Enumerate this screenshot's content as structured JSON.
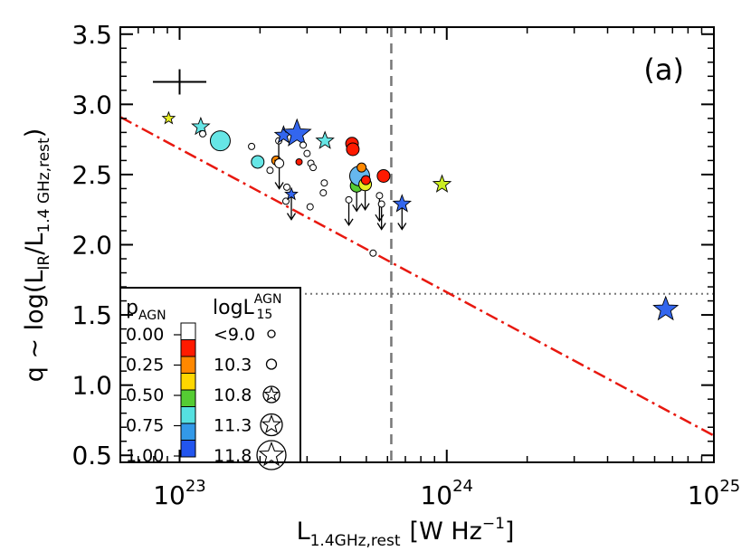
{
  "chart_data": {
    "type": "scatter",
    "panel_label": "(a)",
    "xlabel": {
      "main": "L",
      "sub": "1.4GHz,rest",
      "units_pre": "[W Hz",
      "units_sup": "−1",
      "units_post": "]"
    },
    "ylabel": {
      "pre": "q ~ log(L",
      "sub1": "IR",
      "mid": "/L",
      "sub2": "1.4 GHz,rest",
      "post": ")"
    },
    "x_scale": "log",
    "xlim": [
      6e+22,
      1e+25
    ],
    "ylim": [
      0.45,
      3.55
    ],
    "xticks": [
      {
        "value": 1e+23,
        "base": "10",
        "exp": "23"
      },
      {
        "value": 1e+24,
        "base": "10",
        "exp": "24"
      },
      {
        "value": 1e+25,
        "base": "10",
        "exp": "25"
      }
    ],
    "yticks": [
      "0.5",
      "1.0",
      "1.5",
      "2.0",
      "2.5",
      "3.0",
      "3.5"
    ],
    "reference_lines": {
      "vertical_dashed_x": 6.2e+23,
      "horizontal_dotted_y": 1.65,
      "red_dashdot": {
        "x": [
          6e+22,
          1e+25
        ],
        "y": [
          2.91,
          0.64
        ]
      }
    },
    "error_cross": {
      "x": 1e+23,
      "y": 3.16,
      "dlogx": 0.1,
      "dy": 0.09
    },
    "legend": {
      "p_title_main": "p",
      "p_title_sub": "AGN",
      "l_title_main": "logL",
      "l_title_sup": "AGN",
      "l_title_sub": "15",
      "p_items": [
        {
          "label": "0.00",
          "color": "#ffffff"
        },
        {
          "label": "0.25",
          "color": "#ff1a00"
        },
        {
          "label": "0.25",
          "color": "#ff8800"
        },
        {
          "label": "0.50",
          "color": "#ffd700"
        },
        {
          "label": "0.50",
          "color": "#55cc33"
        },
        {
          "label": "0.75",
          "color": "#55e0e0"
        },
        {
          "label": "0.75",
          "color": "#3399e8"
        },
        {
          "label": "1.00",
          "color": "#2255ee"
        }
      ],
      "p_tick_labels": [
        "0.00",
        "0.25",
        "0.50",
        "0.75",
        "1.00"
      ],
      "l_items": [
        {
          "label": "<9.0",
          "marker": "circle",
          "size": 1
        },
        {
          "label": "10.3",
          "marker": "circle",
          "size": 2
        },
        {
          "label": "10.8",
          "marker": "star-in-circle",
          "size": 3
        },
        {
          "label": "11.3",
          "marker": "star-in-circle",
          "size": 4
        },
        {
          "label": "11.8",
          "marker": "star-in-circle",
          "size": 5
        }
      ]
    },
    "points": [
      {
        "x": 9.1e+22,
        "y": 2.9,
        "marker": "star",
        "size": 2,
        "color": "#e8ee22",
        "upper_limit": false
      },
      {
        "x": 1.2e+23,
        "y": 2.84,
        "marker": "star",
        "size": 3,
        "color": "#66e6e6",
        "upper_limit": false
      },
      {
        "x": 1.22e+23,
        "y": 2.79,
        "marker": "circle",
        "size": 1,
        "color": "#ffffff",
        "upper_limit": false
      },
      {
        "x": 1.42e+23,
        "y": 2.74,
        "marker": "circle",
        "size": 4,
        "color": "#66e6e6",
        "upper_limit": false
      },
      {
        "x": 1.86e+23,
        "y": 2.7,
        "marker": "circle",
        "size": 1,
        "color": "#ffffff",
        "upper_limit": false
      },
      {
        "x": 1.96e+23,
        "y": 2.59,
        "marker": "circle",
        "size": 3,
        "color": "#66e6e6",
        "upper_limit": false
      },
      {
        "x": 2.18e+23,
        "y": 2.53,
        "marker": "circle",
        "size": 1,
        "color": "#ffffff",
        "upper_limit": false
      },
      {
        "x": 2.3e+23,
        "y": 2.6,
        "marker": "circle",
        "size": 2,
        "color": "#ff8800",
        "upper_limit": false
      },
      {
        "x": 2.35e+23,
        "y": 2.74,
        "marker": "circle",
        "size": 1,
        "color": "#ffffff",
        "upper_limit": true
      },
      {
        "x": 2.36e+23,
        "y": 2.58,
        "marker": "circle",
        "size": 2,
        "color": "#ffffff",
        "upper_limit": true
      },
      {
        "x": 2.45e+23,
        "y": 2.78,
        "marker": "star",
        "size": 3,
        "color": "#3366ee",
        "upper_limit": false
      },
      {
        "x": 2.5e+23,
        "y": 2.31,
        "marker": "circle",
        "size": 1,
        "color": "#ffffff",
        "upper_limit": false
      },
      {
        "x": 2.52e+23,
        "y": 2.41,
        "marker": "circle",
        "size": 1,
        "color": "#ffffff",
        "upper_limit": false
      },
      {
        "x": 2.62e+23,
        "y": 2.36,
        "marker": "star",
        "size": 2,
        "color": "#3366ee",
        "upper_limit": true
      },
      {
        "x": 2.75e+23,
        "y": 2.79,
        "marker": "star",
        "size": 5,
        "color": "#3366ee",
        "upper_limit": false
      },
      {
        "x": 2.8e+23,
        "y": 2.59,
        "marker": "circle",
        "size": 1,
        "color": "#ff1a00",
        "upper_limit": false
      },
      {
        "x": 2.9e+23,
        "y": 2.71,
        "marker": "circle",
        "size": 1,
        "color": "#ffffff",
        "upper_limit": false
      },
      {
        "x": 3e+23,
        "y": 2.65,
        "marker": "circle",
        "size": 1,
        "color": "#ffffff",
        "upper_limit": false
      },
      {
        "x": 3.1e+23,
        "y": 2.58,
        "marker": "circle",
        "size": 1,
        "color": "#ffffff",
        "upper_limit": false
      },
      {
        "x": 3.16e+23,
        "y": 2.55,
        "marker": "circle",
        "size": 1,
        "color": "#ffffff",
        "upper_limit": false
      },
      {
        "x": 3.08e+23,
        "y": 2.27,
        "marker": "circle",
        "size": 1,
        "color": "#ffffff",
        "upper_limit": false
      },
      {
        "x": 3.5e+23,
        "y": 2.74,
        "marker": "star",
        "size": 3,
        "color": "#66e6e6",
        "upper_limit": false
      },
      {
        "x": 3.45e+23,
        "y": 2.37,
        "marker": "circle",
        "size": 1,
        "color": "#ffffff",
        "upper_limit": false
      },
      {
        "x": 3.48e+23,
        "y": 2.44,
        "marker": "circle",
        "size": 1,
        "color": "#ffffff",
        "upper_limit": false
      },
      {
        "x": 4.3e+23,
        "y": 2.32,
        "marker": "circle",
        "size": 1,
        "color": "#ffffff",
        "upper_limit": true
      },
      {
        "x": 4.42e+23,
        "y": 2.72,
        "marker": "circle",
        "size": 3,
        "color": "#ff1a00",
        "upper_limit": false
      },
      {
        "x": 4.45e+23,
        "y": 2.68,
        "marker": "circle",
        "size": 3,
        "color": "#ff1a00",
        "upper_limit": false
      },
      {
        "x": 4.6e+23,
        "y": 2.42,
        "marker": "circle",
        "size": 3,
        "color": "#55cc33",
        "upper_limit": true
      },
      {
        "x": 4.72e+23,
        "y": 2.49,
        "marker": "circle",
        "size": 4,
        "color": "#66b8ee",
        "upper_limit": false
      },
      {
        "x": 4.8e+23,
        "y": 2.55,
        "marker": "circle",
        "size": 2,
        "color": "#ff8800",
        "upper_limit": false
      },
      {
        "x": 4.95e+23,
        "y": 2.43,
        "marker": "circle",
        "size": 3,
        "color": "#e8ee22",
        "upper_limit": true
      },
      {
        "x": 4.98e+23,
        "y": 2.46,
        "marker": "circle",
        "size": 2,
        "color": "#ff1a00",
        "upper_limit": false
      },
      {
        "x": 5.3e+23,
        "y": 1.94,
        "marker": "circle",
        "size": 1,
        "color": "#ffffff",
        "upper_limit": false
      },
      {
        "x": 5.6e+23,
        "y": 2.35,
        "marker": "circle",
        "size": 1,
        "color": "#ffffff",
        "upper_limit": true
      },
      {
        "x": 5.7e+23,
        "y": 2.29,
        "marker": "circle",
        "size": 1,
        "color": "#ffffff",
        "upper_limit": true
      },
      {
        "x": 5.8e+23,
        "y": 2.49,
        "marker": "circle",
        "size": 3,
        "color": "#ff1a00",
        "upper_limit": false
      },
      {
        "x": 6.8e+23,
        "y": 2.29,
        "marker": "star",
        "size": 3,
        "color": "#3366ee",
        "upper_limit": true
      },
      {
        "x": 9.6e+23,
        "y": 2.43,
        "marker": "star",
        "size": 3,
        "color": "#ccee22",
        "upper_limit": false
      },
      {
        "x": 6.6e+24,
        "y": 1.54,
        "marker": "star",
        "size": 4,
        "color": "#3366ee",
        "upper_limit": false
      }
    ]
  }
}
